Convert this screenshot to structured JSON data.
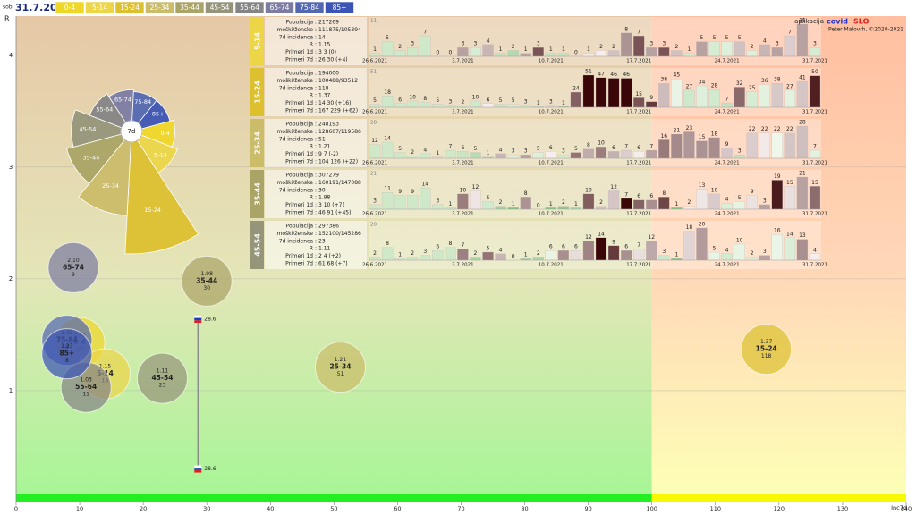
{
  "header": {
    "day": "sob",
    "date": "31.7.2021",
    "groups": [
      {
        "label": "0-4",
        "color": "#efd728"
      },
      {
        "label": "5-14",
        "color": "#ecd648"
      },
      {
        "label": "15-24",
        "color": "#dcc030"
      },
      {
        "label": "25-34",
        "color": "#cbbc6a"
      },
      {
        "label": "35-44",
        "color": "#aaa466"
      },
      {
        "label": "45-54",
        "color": "#96957a"
      },
      {
        "label": "55-64",
        "color": "#858585"
      },
      {
        "label": "65-74",
        "color": "#7c7ca2"
      },
      {
        "label": "75-84",
        "color": "#5468b2"
      },
      {
        "label": "85+",
        "color": "#3c54b4"
      }
    ]
  },
  "app": {
    "prefix": "aplikacija",
    "name1": "covid",
    "name2": "SLO",
    "author": "Peter Malovrh, ©2020-2021"
  },
  "chart_data": {
    "type": "bubble",
    "ylabel": "R",
    "xlabel": "Inc7d",
    "xlim": [
      0,
      140
    ],
    "ylim": [
      0,
      4.35
    ],
    "xticks": [
      0,
      10,
      20,
      30,
      40,
      50,
      60,
      70,
      80,
      90,
      100,
      110,
      120,
      130,
      140
    ],
    "yticks": [
      1,
      2,
      3,
      4
    ],
    "threshold": 100,
    "rose_label": "7d",
    "bubbles": [
      {
        "x": 10,
        "y": 1.43,
        "y_label": "1.43"
      },
      {
        "x": 14,
        "y": 1.15,
        "y_label": "1.15"
      },
      {
        "x": 118,
        "y": 1.37,
        "y_label": "1.37"
      },
      {
        "x": 51,
        "y": 1.21,
        "y_label": "1.21"
      },
      {
        "x": 30,
        "y": 1.98,
        "y_label": "1.98"
      },
      {
        "x": 23,
        "y": 1.11,
        "y_label": "1.11"
      },
      {
        "x": 11,
        "y": 1.03,
        "y_label": "1.03"
      },
      {
        "x": 9,
        "y": 2.1,
        "y_label": "2.10"
      },
      {
        "x": 8,
        "y": 1.45,
        "y_label": "1.45"
      },
      {
        "x": 8,
        "y": 1.33,
        "y_label": "1.33"
      }
    ],
    "slo_marker": {
      "value": 28.6,
      "y_range": [
        0.3,
        1.64
      ]
    }
  },
  "stat_labels": [
    "Populacija",
    "moški/ženske",
    "7d incidenca",
    "R",
    "Primeri 1d",
    "Primeri 7d"
  ],
  "date_labels": [
    "26.6.2021",
    "3.7.2021",
    "10.7.2021",
    "17.7.2021",
    "24.7.2021",
    "31.7.2021"
  ],
  "panels": [
    {
      "group": "5-14",
      "color": "#ecd648",
      "stats": [
        "217269",
        "111875/105394",
        "14",
        "1.15",
        "3 3 (0)",
        "26 30 (+4)"
      ],
      "ymax": 11,
      "values": [
        1,
        5,
        2,
        3,
        7,
        0,
        0,
        3,
        3,
        4,
        1,
        2,
        1,
        3,
        1,
        1,
        0,
        1,
        2,
        2,
        8,
        7,
        3,
        3,
        2,
        1,
        5,
        5,
        5,
        5,
        2,
        4,
        3,
        7,
        11,
        3
      ]
    },
    {
      "group": "15-24",
      "color": "#dcc030",
      "stats": [
        "194000",
        "100488/93512",
        "118",
        "1.37",
        "14 30 (+16)",
        "167 229 (+62)"
      ],
      "ymax": 51,
      "values": [
        5,
        18,
        6,
        10,
        8,
        5,
        3,
        2,
        10,
        6,
        5,
        5,
        3,
        1,
        3,
        1,
        24,
        51,
        47,
        46,
        46,
        15,
        9,
        38,
        45,
        27,
        34,
        28,
        7,
        32,
        25,
        36,
        38,
        27,
        41,
        50
      ]
    },
    {
      "group": "25-34",
      "color": "#cbbc6a",
      "stats": [
        "248193",
        "128607/119586",
        "51",
        "1.21",
        "9 7 (-2)",
        "104 126 (+22)"
      ],
      "ymax": 28,
      "values": [
        12,
        14,
        5,
        2,
        4,
        1,
        7,
        6,
        5,
        1,
        4,
        3,
        3,
        5,
        6,
        3,
        5,
        8,
        10,
        6,
        7,
        6,
        7,
        16,
        21,
        23,
        15,
        18,
        9,
        3,
        22,
        22,
        22,
        22,
        28,
        7
      ]
    },
    {
      "group": "35-44",
      "color": "#aaa466",
      "stats": [
        "307279",
        "160191/147088",
        "30",
        "1.98",
        "3 10 (+7)",
        "46 91 (+45)"
      ],
      "ymax": 21,
      "values": [
        3,
        11,
        9,
        9,
        14,
        3,
        1,
        10,
        12,
        5,
        2,
        1,
        8,
        0,
        1,
        2,
        1,
        10,
        2,
        12,
        7,
        6,
        6,
        8,
        1,
        2,
        13,
        10,
        4,
        5,
        9,
        3,
        19,
        15,
        21,
        15
      ]
    },
    {
      "group": "45-54",
      "color": "#96957a",
      "stats": [
        "297386",
        "152100/145286",
        "23",
        "1.11",
        "2 4 (+2)",
        "61 68 (+7)"
      ],
      "ymax": 20,
      "values": [
        2,
        8,
        1,
        2,
        3,
        6,
        8,
        7,
        2,
        5,
        4,
        0,
        1,
        2,
        6,
        6,
        6,
        12,
        14,
        9,
        6,
        7,
        12,
        3,
        1,
        18,
        20,
        5,
        4,
        10,
        2,
        3,
        16,
        14,
        13,
        4
      ]
    }
  ]
}
